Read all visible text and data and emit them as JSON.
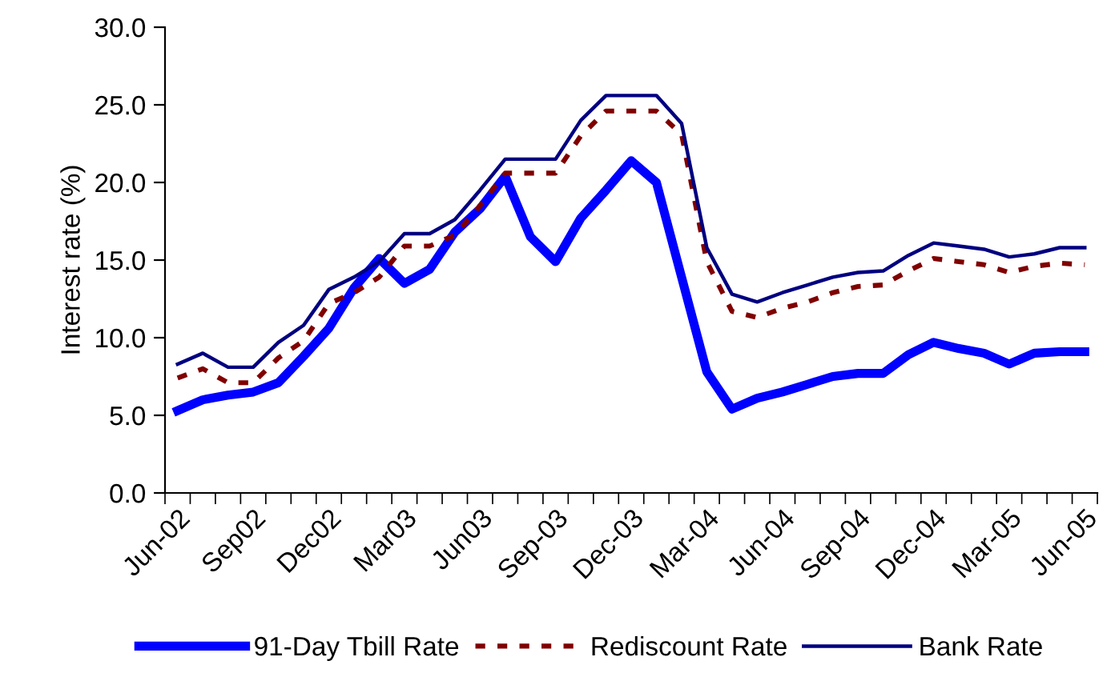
{
  "chart_data": {
    "type": "line",
    "ylabel": "Interest rate (%)",
    "categories": [
      "Jun-02",
      null,
      null,
      "Sep02",
      null,
      null,
      "Dec02",
      null,
      null,
      "Mar03",
      null,
      null,
      "Jun03",
      null,
      null,
      "Sep-03",
      null,
      null,
      "Dec-03",
      null,
      null,
      "Mar-04",
      null,
      null,
      "Jun-04",
      null,
      null,
      "Sep-04",
      null,
      null,
      "Dec-04",
      null,
      null,
      "Mar-05",
      null,
      null,
      "Jun-05"
    ],
    "series": [
      {
        "name": "91-Day Tbill Rate",
        "color": "#0000ff",
        "line_style": "solid",
        "values": [
          5.3,
          6.0,
          6.3,
          6.5,
          7.1,
          8.8,
          10.6,
          13.2,
          15.1,
          13.5,
          14.4,
          16.8,
          18.3,
          20.4,
          16.5,
          14.9,
          17.7,
          19.5,
          21.4,
          20.0,
          13.9,
          7.8,
          5.4,
          6.1,
          6.5,
          7.0,
          7.5,
          7.7,
          7.7,
          8.9,
          9.7,
          9.3,
          9.0,
          8.3,
          9.0,
          9.1,
          9.1
        ]
      },
      {
        "name": "Rediscount Rate",
        "color": "#800000",
        "line_style": "dashed",
        "values": [
          7.4,
          8.0,
          7.1,
          7.1,
          8.7,
          9.8,
          12.2,
          12.9,
          13.9,
          15.9,
          15.9,
          16.6,
          18.5,
          20.6,
          20.6,
          20.6,
          23.0,
          24.6,
          24.6,
          24.6,
          23.1,
          14.9,
          11.7,
          11.3,
          11.9,
          12.3,
          12.9,
          13.3,
          13.4,
          14.3,
          15.1,
          14.9,
          14.7,
          14.2,
          14.6,
          14.8,
          14.7
        ]
      },
      {
        "name": "Bank Rate",
        "color": "#000080",
        "line_style": "solid",
        "values": [
          8.3,
          9.0,
          8.1,
          8.1,
          9.7,
          10.8,
          13.1,
          13.9,
          14.9,
          16.7,
          16.7,
          17.6,
          19.5,
          21.5,
          21.5,
          21.5,
          24.0,
          25.6,
          25.6,
          25.6,
          23.8,
          15.8,
          12.8,
          12.3,
          12.9,
          13.4,
          13.9,
          14.2,
          14.3,
          15.3,
          16.1,
          15.9,
          15.7,
          15.2,
          15.4,
          15.8,
          15.8
        ]
      }
    ],
    "ylim": [
      0,
      30
    ],
    "yticks": [
      {
        "value": 0,
        "label": "0.0"
      },
      {
        "value": 5,
        "label": "5.0"
      },
      {
        "value": 10,
        "label": "10.0"
      },
      {
        "value": 15,
        "label": "15.0"
      },
      {
        "value": 20,
        "label": "20.0"
      },
      {
        "value": 25,
        "label": "25.0"
      },
      {
        "value": 30,
        "label": "30.0"
      }
    ],
    "grid": false,
    "legend": "bottom",
    "marker": "none"
  }
}
